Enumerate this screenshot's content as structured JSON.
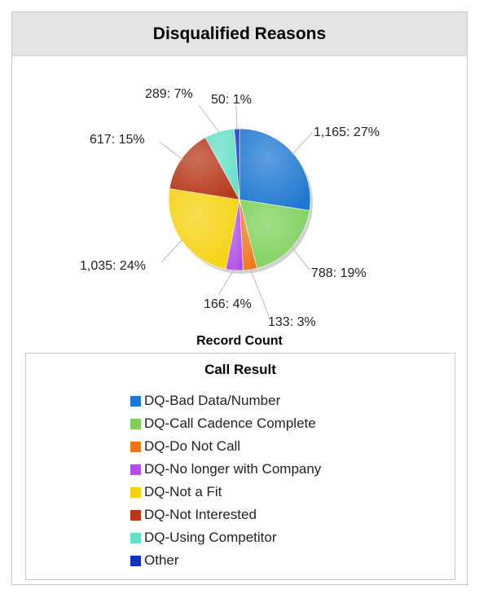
{
  "header": {
    "title": "Disqualified Reasons"
  },
  "chart_data": {
    "type": "pie",
    "measure_label": "Record Count",
    "legend_title": "Call Result",
    "legend_placement": "bottom",
    "slices": [
      {
        "name": "DQ-Bad Data/Number",
        "value": 1165,
        "label": "1,165: 27%",
        "color": "#1f78d1"
      },
      {
        "name": "DQ-Call Cadence Complete",
        "value": 788,
        "label": "788: 19%",
        "color": "#7dd15a"
      },
      {
        "name": "DQ-Do Not Call",
        "value": 133,
        "label": "133: 3%",
        "color": "#ef7415"
      },
      {
        "name": "DQ-No longer with Company",
        "value": 166,
        "label": "166: 4%",
        "color": "#b14fe8"
      },
      {
        "name": "DQ-Not a Fit",
        "value": 1035,
        "label": "1,035: 24%",
        "color": "#f5d20f"
      },
      {
        "name": "DQ-Not Interested",
        "value": 617,
        "label": "617: 15%",
        "color": "#b6381a"
      },
      {
        "name": "DQ-Using Competitor",
        "value": 289,
        "label": "289: 7%",
        "color": "#63e0c8"
      },
      {
        "name": "Other",
        "value": 50,
        "label": "50: 1%",
        "color": "#1032bf"
      }
    ]
  }
}
